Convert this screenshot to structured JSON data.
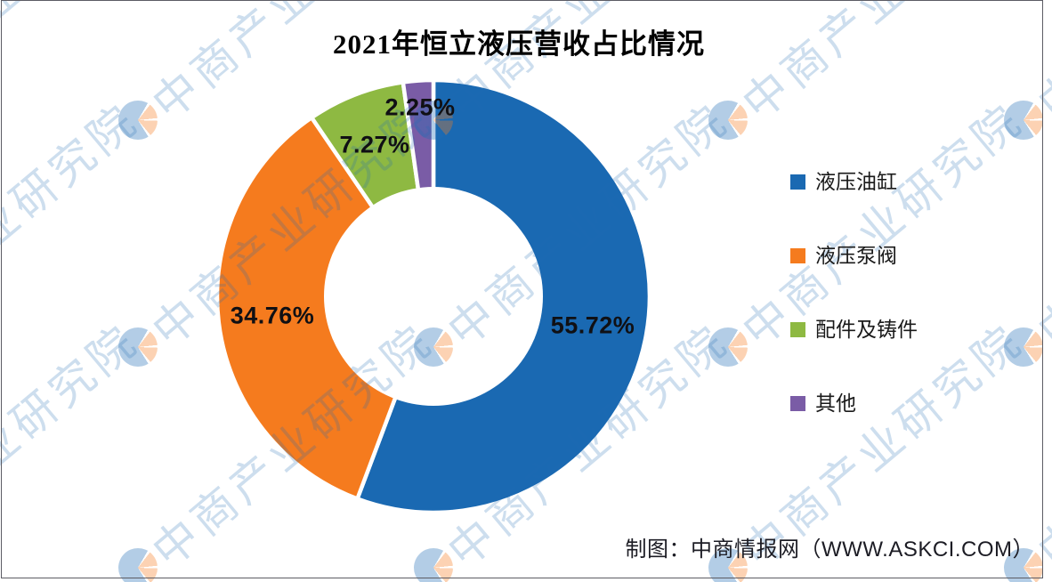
{
  "chart_data": {
    "type": "pie",
    "variant": "donut",
    "title": "2021年恒立液压营收占比情况",
    "categories": [
      "液压油缸",
      "液压泵阀",
      "配件及铸件",
      "其他"
    ],
    "values": [
      55.72,
      34.76,
      7.27,
      2.25
    ],
    "labels": [
      "55.72%",
      "34.76%",
      "7.27%",
      "2.25%"
    ],
    "colors": [
      "#1a69b2",
      "#f57b1e",
      "#8eb942",
      "#7a5ca6"
    ],
    "start_angle_deg": 0,
    "direction": "clockwise",
    "legend_position": "right",
    "inner_radius_ratio": 0.51,
    "label_color": "#101014"
  },
  "watermark": {
    "text": "中商产业研究院",
    "logo_blue": "#1f6cb4",
    "logo_orange": "#f57c20"
  },
  "footer": {
    "credit": "制图：中商情报网（WWW.ASKCI.COM）"
  }
}
